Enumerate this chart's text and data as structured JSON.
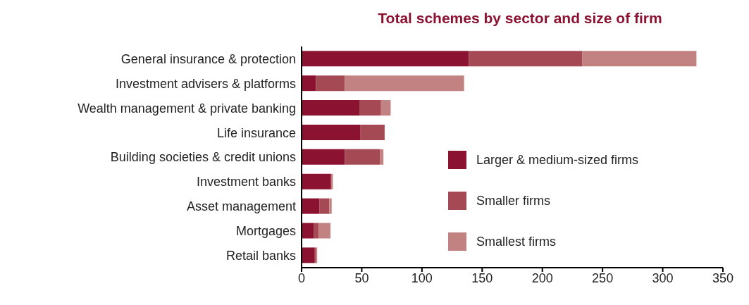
{
  "chart_data": {
    "type": "bar",
    "title": "Total schemes by sector and size of firm",
    "orientation": "horizontal",
    "stacked": true,
    "categories": [
      "General insurance & protection",
      "Investment advisers & platforms",
      "Wealth management & private banking",
      "Life insurance",
      "Building societies & credit unions",
      "Investment banks",
      "Asset management",
      "Mortgages",
      "Retail banks"
    ],
    "series": [
      {
        "name": "Larger & medium-sized firms",
        "color": "#8b1230",
        "values": [
          139,
          12,
          48,
          49,
          36,
          24,
          15,
          10,
          11
        ]
      },
      {
        "name": "Smaller firms",
        "color": "#a54a54",
        "values": [
          94,
          24,
          18,
          20,
          29,
          1,
          8,
          4,
          1
        ]
      },
      {
        "name": "Smallest firms",
        "color": "#c38282",
        "values": [
          95,
          99,
          8,
          0,
          3,
          1,
          2,
          10,
          1
        ]
      }
    ],
    "xlim": [
      0,
      350
    ],
    "xticks": [
      0,
      50,
      100,
      150,
      200,
      250,
      300,
      350
    ],
    "grid": false,
    "legend": "right"
  }
}
